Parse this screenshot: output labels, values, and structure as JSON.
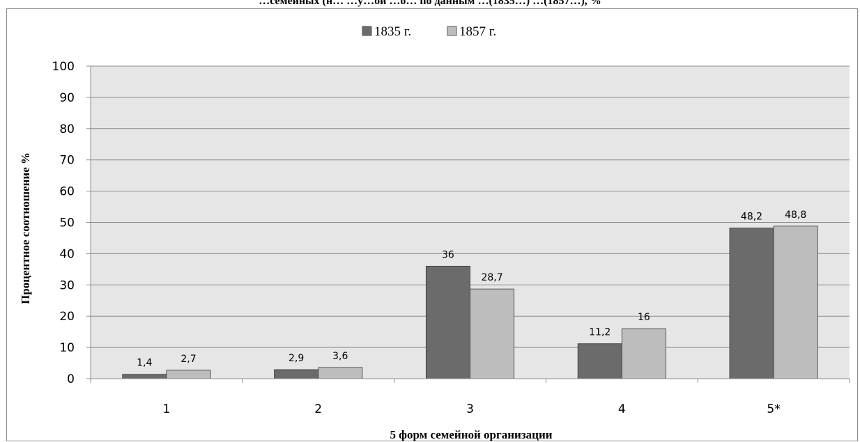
{
  "chart_data": {
    "type": "bar",
    "title": "…семейных (н… …у…ой …о… по данным …(1835…) …(1857…), %",
    "xlabel": "5 форм семейной организации",
    "ylabel": "Процентное соотношение %",
    "categories": [
      "1",
      "2",
      "3",
      "4",
      "5*"
    ],
    "series": [
      {
        "name": "1835 г.",
        "color": "#6b6b6b",
        "values": [
          1.4,
          2.9,
          36,
          11.2,
          48.2
        ],
        "labels": [
          "1,4",
          "2,9",
          "36",
          "11,2",
          "48,2"
        ]
      },
      {
        "name": "1857 г.",
        "color": "#bdbdbd",
        "values": [
          2.7,
          3.6,
          28.7,
          16,
          48.8
        ],
        "labels": [
          "2,7",
          "3,6",
          "28,7",
          "16",
          "48,8"
        ]
      }
    ],
    "ylim": [
      0,
      100
    ],
    "yticks": [
      "0",
      "10",
      "20",
      "30",
      "40",
      "50",
      "60",
      "70",
      "80",
      "90",
      "100"
    ],
    "grid": true,
    "plot_background": "#e6e6e6",
    "gridline_color": "#8c8c8c",
    "legend_position": "top-center"
  }
}
